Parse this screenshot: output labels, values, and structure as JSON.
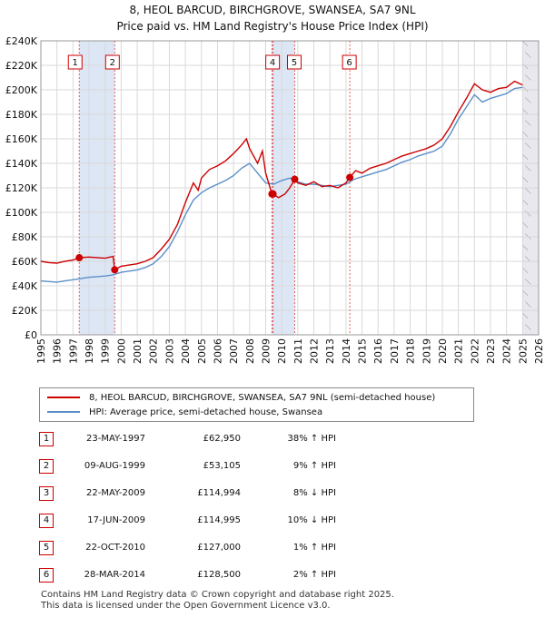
{
  "title_line1": "8, HEOL BARCUD, BIRCHGROVE, SWANSEA, SA7 9NL",
  "title_line2": "Price paid vs. HM Land Registry's House Price Index (HPI)",
  "colors": {
    "property": "#cc0000",
    "hpi": "#5b8fc9",
    "shade": "#dde6f5",
    "grid": "#d9d9d9"
  },
  "legend": {
    "property_label": "8, HEOL BARCUD, BIRCHGROVE, SWANSEA, SA7 9NL (semi-detached house)",
    "hpi_label": "HPI: Average price, semi-detached house, Swansea"
  },
  "chart_data": {
    "type": "line",
    "xlim": [
      1995,
      2026
    ],
    "ylim": [
      0,
      240000
    ],
    "x_ticks": [
      "1995",
      "1996",
      "1997",
      "1998",
      "1999",
      "2000",
      "2001",
      "2002",
      "2003",
      "2004",
      "2005",
      "2006",
      "2007",
      "2008",
      "2009",
      "2010",
      "2011",
      "2012",
      "2013",
      "2014",
      "2015",
      "2016",
      "2017",
      "2018",
      "2019",
      "2020",
      "2021",
      "2022",
      "2023",
      "2024",
      "2025",
      "2026"
    ],
    "y_ticks": [
      "£0",
      "£20K",
      "£40K",
      "£60K",
      "£80K",
      "£100K",
      "£120K",
      "£140K",
      "£160K",
      "£180K",
      "£200K",
      "£220K",
      "£240K"
    ],
    "shaded_ranges": [
      [
        1997.39,
        1999.6
      ],
      [
        2009.39,
        2010.8
      ],
      [
        2025.0,
        2026.0
      ]
    ],
    "sales": [
      {
        "num": "1",
        "x": 1997.39,
        "y": 62950
      },
      {
        "num": "2",
        "x": 1999.6,
        "y": 53105
      },
      {
        "num": "3",
        "x": 2009.39,
        "y": 114994
      },
      {
        "num": "4",
        "x": 2009.46,
        "y": 114995
      },
      {
        "num": "5",
        "x": 2010.81,
        "y": 127000
      },
      {
        "num": "6",
        "x": 2014.24,
        "y": 128500
      }
    ],
    "series": [
      {
        "name": "8, HEOL BARCUD, BIRCHGROVE, SWANSEA, SA7 9NL (semi-detached house)",
        "points": [
          [
            1995,
            60000
          ],
          [
            1995.5,
            59000
          ],
          [
            1996,
            58500
          ],
          [
            1996.5,
            60000
          ],
          [
            1997,
            61000
          ],
          [
            1997.39,
            62950
          ],
          [
            1998,
            63500
          ],
          [
            1998.5,
            63000
          ],
          [
            1999,
            62500
          ],
          [
            1999.5,
            64000
          ],
          [
            1999.6,
            53105
          ],
          [
            2000,
            56000
          ],
          [
            2000.5,
            57000
          ],
          [
            2001,
            58000
          ],
          [
            2001.5,
            60000
          ],
          [
            2002,
            63000
          ],
          [
            2002.5,
            70000
          ],
          [
            2003,
            78000
          ],
          [
            2003.5,
            90000
          ],
          [
            2004,
            108000
          ],
          [
            2004.5,
            124000
          ],
          [
            2004.8,
            118000
          ],
          [
            2005,
            128000
          ],
          [
            2005.5,
            135000
          ],
          [
            2006,
            138000
          ],
          [
            2006.5,
            142000
          ],
          [
            2007,
            148000
          ],
          [
            2007.5,
            155000
          ],
          [
            2007.8,
            160000
          ],
          [
            2008,
            152000
          ],
          [
            2008.5,
            140000
          ],
          [
            2008.8,
            150000
          ],
          [
            2009,
            132000
          ],
          [
            2009.39,
            114994
          ],
          [
            2009.46,
            114995
          ],
          [
            2009.8,
            112000
          ],
          [
            2010.2,
            115000
          ],
          [
            2010.5,
            120000
          ],
          [
            2010.81,
            127000
          ],
          [
            2011,
            124000
          ],
          [
            2011.5,
            122000
          ],
          [
            2012,
            125000
          ],
          [
            2012.5,
            121000
          ],
          [
            2013,
            122000
          ],
          [
            2013.5,
            120000
          ],
          [
            2014,
            124000
          ],
          [
            2014.24,
            128500
          ],
          [
            2014.6,
            134000
          ],
          [
            2015,
            132000
          ],
          [
            2015.5,
            136000
          ],
          [
            2016,
            138000
          ],
          [
            2016.5,
            140000
          ],
          [
            2017,
            143000
          ],
          [
            2017.5,
            146000
          ],
          [
            2018,
            148000
          ],
          [
            2018.5,
            150000
          ],
          [
            2019,
            152000
          ],
          [
            2019.5,
            155000
          ],
          [
            2020,
            160000
          ],
          [
            2020.5,
            170000
          ],
          [
            2021,
            182000
          ],
          [
            2021.5,
            193000
          ],
          [
            2022,
            205000
          ],
          [
            2022.5,
            200000
          ],
          [
            2023,
            198000
          ],
          [
            2023.5,
            201000
          ],
          [
            2024,
            202000
          ],
          [
            2024.5,
            207000
          ],
          [
            2025,
            204000
          ]
        ]
      },
      {
        "name": "HPI: Average price, semi-detached house, Swansea",
        "points": [
          [
            1995,
            44000
          ],
          [
            1995.5,
            43500
          ],
          [
            1996,
            43000
          ],
          [
            1996.5,
            44000
          ],
          [
            1997,
            45000
          ],
          [
            1997.5,
            46000
          ],
          [
            1998,
            47000
          ],
          [
            1998.5,
            47500
          ],
          [
            1999,
            48000
          ],
          [
            1999.5,
            49000
          ],
          [
            2000,
            51000
          ],
          [
            2000.5,
            52000
          ],
          [
            2001,
            53000
          ],
          [
            2001.5,
            55000
          ],
          [
            2002,
            58000
          ],
          [
            2002.5,
            64000
          ],
          [
            2003,
            72000
          ],
          [
            2003.5,
            84000
          ],
          [
            2004,
            98000
          ],
          [
            2004.5,
            110000
          ],
          [
            2005,
            116000
          ],
          [
            2005.5,
            120000
          ],
          [
            2006,
            123000
          ],
          [
            2006.5,
            126000
          ],
          [
            2007,
            130000
          ],
          [
            2007.5,
            136000
          ],
          [
            2008,
            140000
          ],
          [
            2008.5,
            132000
          ],
          [
            2009,
            124000
          ],
          [
            2009.5,
            123000
          ],
          [
            2010,
            126000
          ],
          [
            2010.5,
            128000
          ],
          [
            2011,
            125000
          ],
          [
            2011.5,
            123000
          ],
          [
            2012,
            123000
          ],
          [
            2012.5,
            122000
          ],
          [
            2013,
            121000
          ],
          [
            2013.5,
            122000
          ],
          [
            2014,
            123000
          ],
          [
            2014.5,
            127000
          ],
          [
            2015,
            129000
          ],
          [
            2015.5,
            131000
          ],
          [
            2016,
            133000
          ],
          [
            2016.5,
            135000
          ],
          [
            2017,
            138000
          ],
          [
            2017.5,
            141000
          ],
          [
            2018,
            143000
          ],
          [
            2018.5,
            146000
          ],
          [
            2019,
            148000
          ],
          [
            2019.5,
            150000
          ],
          [
            2020,
            154000
          ],
          [
            2020.5,
            164000
          ],
          [
            2021,
            176000
          ],
          [
            2021.5,
            186000
          ],
          [
            2022,
            196000
          ],
          [
            2022.5,
            190000
          ],
          [
            2023,
            193000
          ],
          [
            2023.5,
            195000
          ],
          [
            2024,
            197000
          ],
          [
            2024.5,
            201000
          ],
          [
            2025,
            202000
          ]
        ]
      }
    ]
  },
  "transactions": [
    {
      "num": "1",
      "date": "23-MAY-1997",
      "price": "£62,950",
      "hpi": "38% ↑ HPI"
    },
    {
      "num": "2",
      "date": "09-AUG-1999",
      "price": "£53,105",
      "hpi": "9% ↑ HPI"
    },
    {
      "num": "3",
      "date": "22-MAY-2009",
      "price": "£114,994",
      "hpi": "8% ↓ HPI"
    },
    {
      "num": "4",
      "date": "17-JUN-2009",
      "price": "£114,995",
      "hpi": "10% ↓ HPI"
    },
    {
      "num": "5",
      "date": "22-OCT-2010",
      "price": "£127,000",
      "hpi": "1% ↑ HPI"
    },
    {
      "num": "6",
      "date": "28-MAR-2014",
      "price": "£128,500",
      "hpi": "2% ↑ HPI"
    }
  ],
  "footer": {
    "line1": "Contains HM Land Registry data © Crown copyright and database right 2025.",
    "line2": "This data is licensed under the Open Government Licence v3.0."
  }
}
